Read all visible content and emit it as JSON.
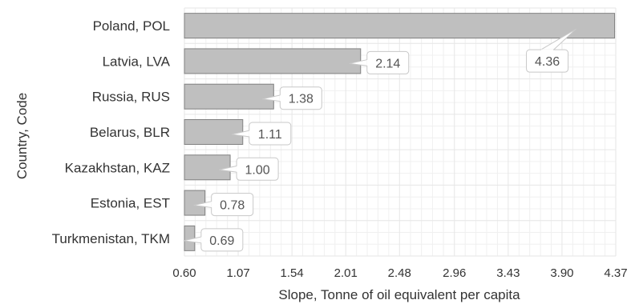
{
  "chart_data": {
    "type": "bar",
    "orientation": "horizontal",
    "categories": [
      "Poland, POL",
      "Latvia, LVA",
      "Russia, RUS",
      "Belarus, BLR",
      "Kazakhstan, KAZ",
      "Estonia, EST",
      "Turkmenistan, TKM"
    ],
    "values": [
      4.36,
      2.14,
      1.38,
      1.11,
      1.0,
      0.78,
      0.69
    ],
    "data_labels": [
      "4.36",
      "2.14",
      "1.38",
      "1.11",
      "1.00",
      "0.78",
      "0.69"
    ],
    "xlabel": "Slope, Tonne of oil equivalent per capita",
    "ylabel": "Country, Code",
    "xlim": [
      0.6,
      4.37
    ],
    "xticks": [
      0.6,
      1.07,
      1.54,
      2.01,
      2.48,
      2.96,
      3.43,
      3.9,
      4.37
    ],
    "xtick_labels": [
      "0.60",
      "1.07",
      "1.54",
      "2.01",
      "2.48",
      "2.96",
      "3.43",
      "3.90",
      "4.37"
    ],
    "grid": true,
    "legend": "none",
    "colors": {
      "bar": "#bfbfbf",
      "bar_stroke": "#808080",
      "grid": "#e6e6e6",
      "callout_stroke": "#c8c8c8"
    }
  }
}
